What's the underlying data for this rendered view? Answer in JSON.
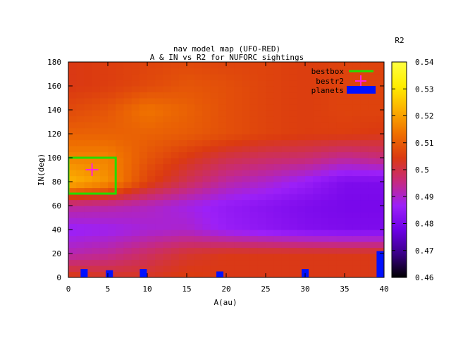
{
  "chart_data": {
    "type": "heatmap",
    "title": "nav model map (UFO-RED)",
    "subtitle": "A & IN vs R2 for NUFORC sightings",
    "xlabel": "A(au)",
    "ylabel": "IN(deg)",
    "colorbar_label": "R2",
    "xlim": [
      0,
      40
    ],
    "ylim": [
      0,
      180
    ],
    "zlim": [
      0.46,
      0.54
    ],
    "x_ticks": [
      0,
      5,
      10,
      15,
      20,
      25,
      30,
      35,
      40
    ],
    "x_tick_labels": [
      "0",
      "5",
      "10",
      "15",
      "20",
      "25",
      "30",
      "35",
      "40"
    ],
    "y_ticks": [
      0,
      20,
      40,
      60,
      80,
      100,
      120,
      140,
      160,
      180
    ],
    "y_tick_labels": [
      "0",
      "20",
      "40",
      "60",
      "80",
      "100",
      "120",
      "140",
      "160",
      "180"
    ],
    "cb_ticks": [
      0.46,
      0.47,
      0.48,
      0.49,
      0.5,
      0.51,
      0.52,
      0.53,
      0.54
    ],
    "cb_tick_labels": [
      "0.46",
      "0.47",
      "0.48",
      "0.49",
      "0.5",
      "0.51",
      "0.52",
      "0.53",
      "0.54"
    ],
    "palette": [
      "#000000",
      "#3b0089",
      "#6d00e6",
      "#9c20f8",
      "#c62a80",
      "#db3a10",
      "#ef7000",
      "#fcb000",
      "#ffee00",
      "#ffff40"
    ],
    "legend_position": "top-right",
    "legend": [
      {
        "label": "bestbox",
        "color": "#22dd00",
        "symbol": "line"
      },
      {
        "label": "bestr2",
        "color": "#ff22dd",
        "symbol": "plus"
      },
      {
        "label": "planets",
        "color": "#0010ff",
        "symbol": "bar"
      }
    ],
    "bestbox": {
      "a_min": 0,
      "a_max": 6,
      "in_min": 70,
      "in_max": 100
    },
    "bestr2": {
      "a": 3,
      "in": 90
    },
    "planets": [
      {
        "a": 2.0,
        "in": 7
      },
      {
        "a": 5.2,
        "in": 6
      },
      {
        "a": 9.5,
        "in": 7
      },
      {
        "a": 19.2,
        "in": 5
      },
      {
        "a": 30.0,
        "in": 7
      },
      {
        "a": 39.5,
        "in": 22
      }
    ],
    "grid_a": [
      0,
      5,
      10,
      15,
      20,
      25,
      30,
      35,
      40
    ],
    "grid_in": [
      0,
      20,
      40,
      60,
      80,
      100,
      120,
      140,
      160,
      180
    ],
    "r2": [
      [
        0.505,
        0.503,
        0.503,
        0.505,
        0.504,
        0.504,
        0.504,
        0.504,
        0.504
      ],
      [
        0.492,
        0.494,
        0.498,
        0.502,
        0.504,
        0.504,
        0.504,
        0.504,
        0.504
      ],
      [
        0.486,
        0.487,
        0.489,
        0.49,
        0.486,
        0.484,
        0.482,
        0.481,
        0.481
      ],
      [
        0.494,
        0.493,
        0.491,
        0.488,
        0.485,
        0.483,
        0.481,
        0.48,
        0.48
      ],
      [
        0.523,
        0.518,
        0.506,
        0.499,
        0.493,
        0.49,
        0.486,
        0.481,
        0.481
      ],
      [
        0.516,
        0.516,
        0.509,
        0.504,
        0.5,
        0.498,
        0.497,
        0.494,
        0.496
      ],
      [
        0.511,
        0.511,
        0.511,
        0.51,
        0.508,
        0.506,
        0.505,
        0.505,
        0.504
      ],
      [
        0.507,
        0.509,
        0.514,
        0.511,
        0.508,
        0.506,
        0.505,
        0.506,
        0.506
      ],
      [
        0.504,
        0.505,
        0.507,
        0.509,
        0.508,
        0.506,
        0.505,
        0.506,
        0.506
      ],
      [
        0.504,
        0.505,
        0.506,
        0.507,
        0.506,
        0.506,
        0.505,
        0.506,
        0.506
      ]
    ]
  }
}
